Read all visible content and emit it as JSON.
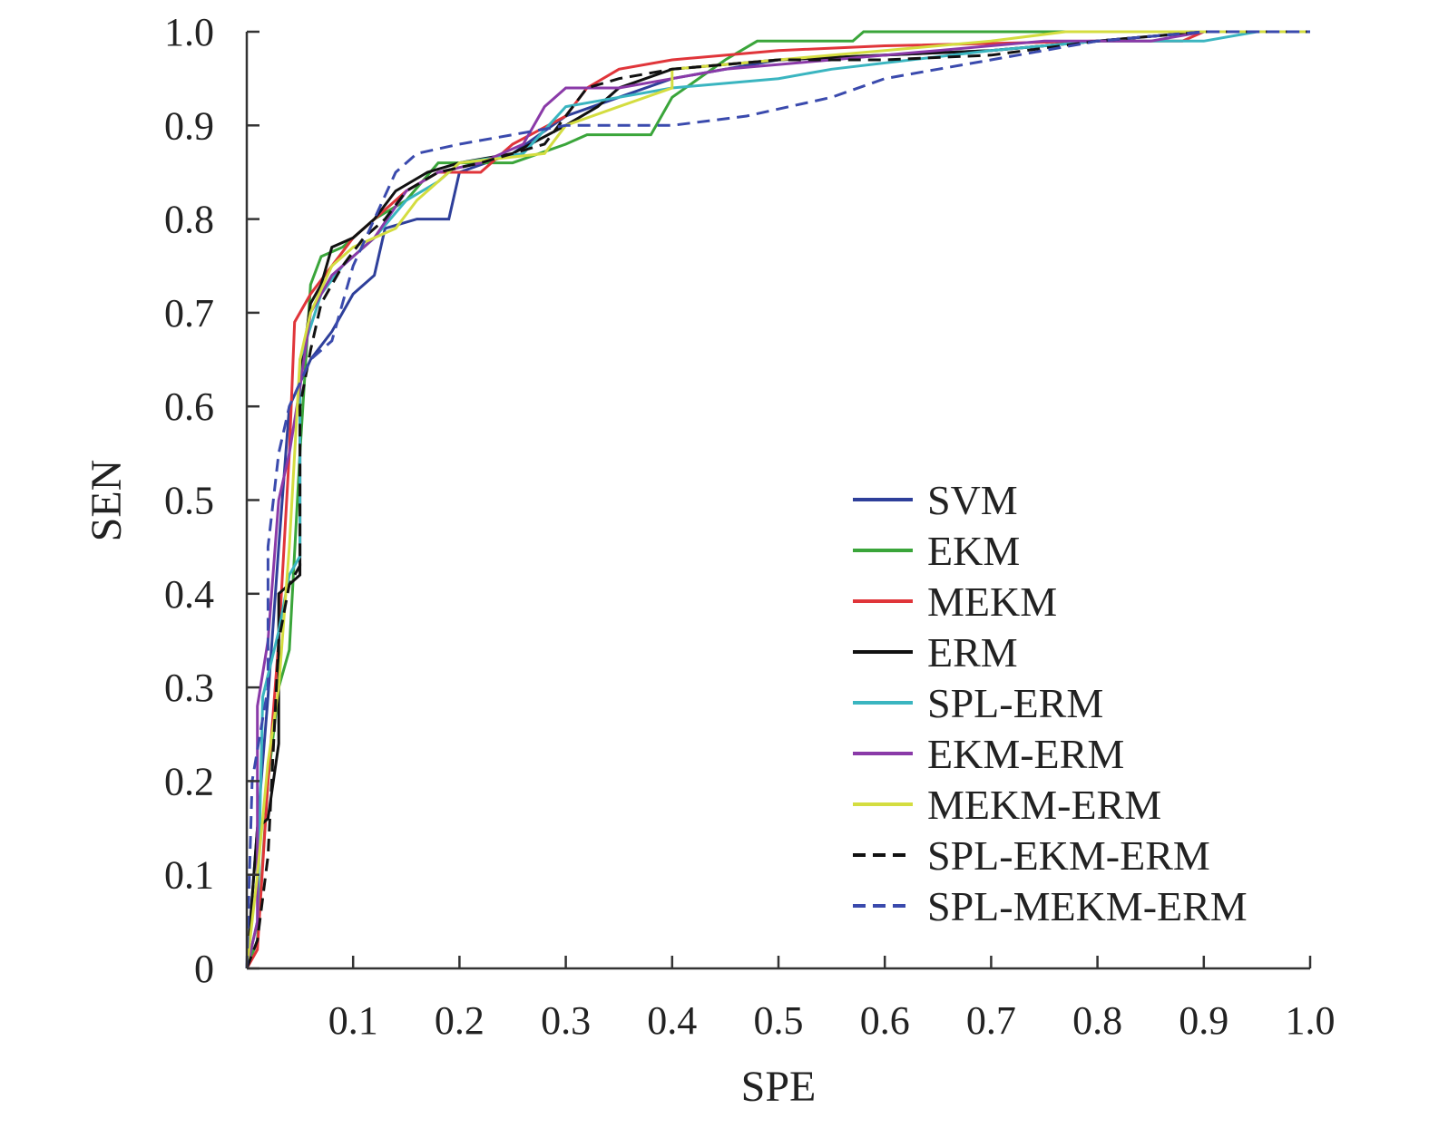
{
  "chart_data": {
    "type": "line",
    "title": "",
    "xlabel": "SPE",
    "ylabel": "SEN",
    "xlim": [
      0,
      1.0
    ],
    "ylim": [
      0,
      1.0
    ],
    "x_ticks": [
      {
        "value": 0.1,
        "label": "0.1"
      },
      {
        "value": 0.2,
        "label": "0.2"
      },
      {
        "value": 0.3,
        "label": "0.3"
      },
      {
        "value": 0.4,
        "label": "0.4"
      },
      {
        "value": 0.5,
        "label": "0.5"
      },
      {
        "value": 0.6,
        "label": "0.6"
      },
      {
        "value": 0.7,
        "label": "0.7"
      },
      {
        "value": 0.8,
        "label": "0.8"
      },
      {
        "value": 0.9,
        "label": "0.9"
      },
      {
        "value": 1.0,
        "label": "1.0"
      }
    ],
    "y_ticks": [
      {
        "value": 0,
        "label": "0"
      },
      {
        "value": 0.1,
        "label": "0.1"
      },
      {
        "value": 0.2,
        "label": "0.2"
      },
      {
        "value": 0.3,
        "label": "0.3"
      },
      {
        "value": 0.4,
        "label": "0.4"
      },
      {
        "value": 0.5,
        "label": "0.5"
      },
      {
        "value": 0.6,
        "label": "0.6"
      },
      {
        "value": 0.7,
        "label": "0.7"
      },
      {
        "value": 0.8,
        "label": "0.8"
      },
      {
        "value": 0.9,
        "label": "0.9"
      },
      {
        "value": 1.0,
        "label": "1.0"
      }
    ],
    "grid": false,
    "legend_position": "bottom-right",
    "series": [
      {
        "name": "SVM",
        "color": "#2e3f9a",
        "dash": "solid",
        "points": [
          [
            0,
            0
          ],
          [
            0.01,
            0.15
          ],
          [
            0.02,
            0.29
          ],
          [
            0.03,
            0.45
          ],
          [
            0.04,
            0.6
          ],
          [
            0.06,
            0.65
          ],
          [
            0.08,
            0.68
          ],
          [
            0.1,
            0.72
          ],
          [
            0.12,
            0.74
          ],
          [
            0.13,
            0.79
          ],
          [
            0.16,
            0.8
          ],
          [
            0.19,
            0.8
          ],
          [
            0.2,
            0.85
          ],
          [
            0.25,
            0.87
          ],
          [
            0.3,
            0.91
          ],
          [
            0.35,
            0.93
          ],
          [
            0.4,
            0.95
          ],
          [
            0.5,
            0.97
          ],
          [
            0.6,
            0.975
          ],
          [
            0.7,
            0.98
          ],
          [
            0.8,
            0.99
          ],
          [
            0.9,
            1.0
          ],
          [
            1.0,
            1.0
          ]
        ]
      },
      {
        "name": "EKM",
        "color": "#3aa53a",
        "dash": "solid",
        "points": [
          [
            0,
            0
          ],
          [
            0.01,
            0.03
          ],
          [
            0.02,
            0.2
          ],
          [
            0.03,
            0.3
          ],
          [
            0.04,
            0.34
          ],
          [
            0.05,
            0.55
          ],
          [
            0.06,
            0.73
          ],
          [
            0.07,
            0.76
          ],
          [
            0.09,
            0.77
          ],
          [
            0.12,
            0.8
          ],
          [
            0.15,
            0.82
          ],
          [
            0.18,
            0.86
          ],
          [
            0.25,
            0.86
          ],
          [
            0.3,
            0.88
          ],
          [
            0.32,
            0.89
          ],
          [
            0.38,
            0.89
          ],
          [
            0.4,
            0.93
          ],
          [
            0.45,
            0.97
          ],
          [
            0.48,
            0.99
          ],
          [
            0.57,
            0.99
          ],
          [
            0.58,
            1.0
          ],
          [
            1.0,
            1.0
          ]
        ]
      },
      {
        "name": "MEKM",
        "color": "#e0353a",
        "dash": "solid",
        "points": [
          [
            0,
            0
          ],
          [
            0.01,
            0.02
          ],
          [
            0.02,
            0.2
          ],
          [
            0.03,
            0.35
          ],
          [
            0.04,
            0.55
          ],
          [
            0.045,
            0.69
          ],
          [
            0.06,
            0.72
          ],
          [
            0.08,
            0.75
          ],
          [
            0.1,
            0.78
          ],
          [
            0.13,
            0.81
          ],
          [
            0.15,
            0.83
          ],
          [
            0.18,
            0.85
          ],
          [
            0.22,
            0.85
          ],
          [
            0.25,
            0.88
          ],
          [
            0.3,
            0.91
          ],
          [
            0.32,
            0.94
          ],
          [
            0.35,
            0.96
          ],
          [
            0.4,
            0.97
          ],
          [
            0.5,
            0.98
          ],
          [
            0.6,
            0.985
          ],
          [
            0.8,
            0.99
          ],
          [
            0.88,
            0.99
          ],
          [
            0.9,
            1.0
          ],
          [
            1.0,
            1.0
          ]
        ]
      },
      {
        "name": "ERM",
        "color": "#111111",
        "dash": "solid",
        "points": [
          [
            0,
            0
          ],
          [
            0.01,
            0.15
          ],
          [
            0.02,
            0.16
          ],
          [
            0.03,
            0.24
          ],
          [
            0.03,
            0.4
          ],
          [
            0.04,
            0.41
          ],
          [
            0.05,
            0.42
          ],
          [
            0.05,
            0.63
          ],
          [
            0.06,
            0.71
          ],
          [
            0.07,
            0.73
          ],
          [
            0.08,
            0.77
          ],
          [
            0.1,
            0.78
          ],
          [
            0.12,
            0.8
          ],
          [
            0.14,
            0.83
          ],
          [
            0.17,
            0.85
          ],
          [
            0.2,
            0.86
          ],
          [
            0.25,
            0.87
          ],
          [
            0.3,
            0.9
          ],
          [
            0.33,
            0.92
          ],
          [
            0.35,
            0.94
          ],
          [
            0.4,
            0.96
          ],
          [
            0.5,
            0.97
          ],
          [
            0.6,
            0.975
          ],
          [
            0.7,
            0.98
          ],
          [
            0.8,
            0.99
          ],
          [
            0.9,
            1.0
          ],
          [
            1.0,
            1.0
          ]
        ]
      },
      {
        "name": "SPL-ERM",
        "color": "#3ab5c0",
        "dash": "solid",
        "points": [
          [
            0,
            0
          ],
          [
            0.01,
            0.05
          ],
          [
            0.015,
            0.29
          ],
          [
            0.03,
            0.36
          ],
          [
            0.04,
            0.42
          ],
          [
            0.05,
            0.44
          ],
          [
            0.05,
            0.65
          ],
          [
            0.07,
            0.72
          ],
          [
            0.09,
            0.75
          ],
          [
            0.12,
            0.78
          ],
          [
            0.15,
            0.82
          ],
          [
            0.18,
            0.84
          ],
          [
            0.2,
            0.86
          ],
          [
            0.26,
            0.87
          ],
          [
            0.3,
            0.92
          ],
          [
            0.35,
            0.93
          ],
          [
            0.4,
            0.94
          ],
          [
            0.5,
            0.95
          ],
          [
            0.55,
            0.96
          ],
          [
            0.7,
            0.98
          ],
          [
            0.8,
            0.99
          ],
          [
            0.9,
            0.99
          ],
          [
            0.95,
            1.0
          ],
          [
            1.0,
            1.0
          ]
        ]
      },
      {
        "name": "EKM-ERM",
        "color": "#8a3aa8",
        "dash": "solid",
        "points": [
          [
            0,
            0
          ],
          [
            0.01,
            0.05
          ],
          [
            0.01,
            0.28
          ],
          [
            0.02,
            0.35
          ],
          [
            0.03,
            0.5
          ],
          [
            0.04,
            0.55
          ],
          [
            0.05,
            0.62
          ],
          [
            0.06,
            0.7
          ],
          [
            0.08,
            0.74
          ],
          [
            0.1,
            0.76
          ],
          [
            0.12,
            0.78
          ],
          [
            0.15,
            0.83
          ],
          [
            0.18,
            0.85
          ],
          [
            0.22,
            0.86
          ],
          [
            0.26,
            0.88
          ],
          [
            0.28,
            0.92
          ],
          [
            0.3,
            0.94
          ],
          [
            0.35,
            0.94
          ],
          [
            0.4,
            0.95
          ],
          [
            0.45,
            0.96
          ],
          [
            0.55,
            0.97
          ],
          [
            0.65,
            0.98
          ],
          [
            0.75,
            0.99
          ],
          [
            0.85,
            0.99
          ],
          [
            0.9,
            1.0
          ],
          [
            1.0,
            1.0
          ]
        ]
      },
      {
        "name": "MEKM-ERM",
        "color": "#d4dd40",
        "dash": "solid",
        "points": [
          [
            0,
            0
          ],
          [
            0.01,
            0.1
          ],
          [
            0.02,
            0.22
          ],
          [
            0.03,
            0.3
          ],
          [
            0.04,
            0.45
          ],
          [
            0.05,
            0.65
          ],
          [
            0.06,
            0.7
          ],
          [
            0.08,
            0.75
          ],
          [
            0.1,
            0.77
          ],
          [
            0.12,
            0.78
          ],
          [
            0.14,
            0.79
          ],
          [
            0.16,
            0.82
          ],
          [
            0.2,
            0.86
          ],
          [
            0.28,
            0.87
          ],
          [
            0.3,
            0.9
          ],
          [
            0.35,
            0.92
          ],
          [
            0.4,
            0.94
          ],
          [
            0.4,
            0.96
          ],
          [
            0.5,
            0.97
          ],
          [
            0.6,
            0.98
          ],
          [
            0.7,
            0.99
          ],
          [
            0.77,
            1.0
          ],
          [
            1.0,
            1.0
          ]
        ]
      },
      {
        "name": "SPL-EKM-ERM",
        "color": "#111111",
        "dash": "dashed",
        "points": [
          [
            0,
            0
          ],
          [
            0.01,
            0.03
          ],
          [
            0.02,
            0.12
          ],
          [
            0.03,
            0.35
          ],
          [
            0.04,
            0.41
          ],
          [
            0.05,
            0.43
          ],
          [
            0.05,
            0.6
          ],
          [
            0.06,
            0.66
          ],
          [
            0.07,
            0.71
          ],
          [
            0.09,
            0.75
          ],
          [
            0.11,
            0.78
          ],
          [
            0.13,
            0.8
          ],
          [
            0.15,
            0.83
          ],
          [
            0.18,
            0.85
          ],
          [
            0.22,
            0.86
          ],
          [
            0.28,
            0.88
          ],
          [
            0.32,
            0.94
          ],
          [
            0.35,
            0.95
          ],
          [
            0.4,
            0.96
          ],
          [
            0.5,
            0.97
          ],
          [
            0.6,
            0.97
          ],
          [
            0.7,
            0.975
          ],
          [
            0.8,
            0.99
          ],
          [
            0.9,
            1.0
          ],
          [
            1.0,
            1.0
          ]
        ]
      },
      {
        "name": "SPL-MEKM-ERM",
        "color": "#3a4aad",
        "dash": "dashed",
        "points": [
          [
            0,
            0
          ],
          [
            0.005,
            0.2
          ],
          [
            0.02,
            0.3
          ],
          [
            0.02,
            0.45
          ],
          [
            0.03,
            0.55
          ],
          [
            0.04,
            0.6
          ],
          [
            0.06,
            0.65
          ],
          [
            0.08,
            0.67
          ],
          [
            0.1,
            0.75
          ],
          [
            0.12,
            0.8
          ],
          [
            0.14,
            0.85
          ],
          [
            0.16,
            0.87
          ],
          [
            0.2,
            0.88
          ],
          [
            0.25,
            0.89
          ],
          [
            0.3,
            0.9
          ],
          [
            0.35,
            0.9
          ],
          [
            0.4,
            0.9
          ],
          [
            0.47,
            0.91
          ],
          [
            0.55,
            0.93
          ],
          [
            0.6,
            0.95
          ],
          [
            0.65,
            0.96
          ],
          [
            0.7,
            0.97
          ],
          [
            0.8,
            0.99
          ],
          [
            0.9,
            1.0
          ],
          [
            1.0,
            1.0
          ]
        ]
      }
    ]
  }
}
